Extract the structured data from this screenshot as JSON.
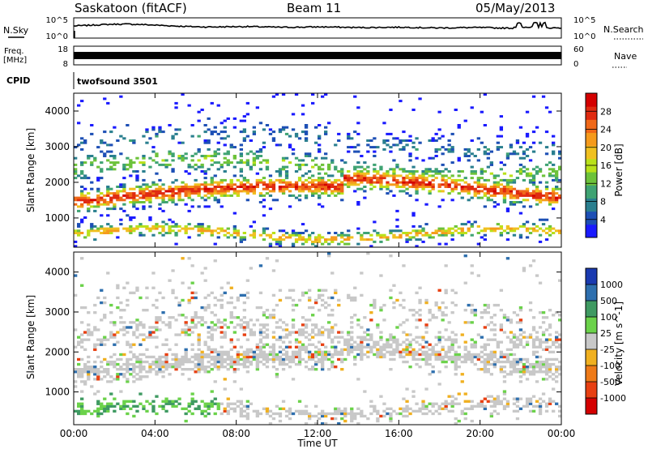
{
  "header": {
    "station": "Saskatoon (fitACF)",
    "beam": "Beam 11",
    "date": "05/May/2013"
  },
  "noise_panel": {
    "left_label": "N.Sky",
    "right_label": "N.Search",
    "left_ticks": [
      "10^5",
      "10^0"
    ],
    "right_ticks": [
      "10^5",
      "10^0"
    ]
  },
  "freq_panel": {
    "left_label": "Freq.",
    "left_unit": "[MHz]",
    "right_label": "Nave",
    "left_ticks": [
      "18",
      "8"
    ],
    "right_ticks": [
      "60",
      "0"
    ]
  },
  "cpid_panel": {
    "label": "CPID",
    "value": "twofsound 3501"
  },
  "chart_data": [
    {
      "type": "heatmap",
      "quantity": "Power",
      "ylabel": "Slant Range [km]",
      "colorbar_label": "Power [dB]",
      "ylim": [
        180,
        4500
      ],
      "yticks": [
        "1000",
        "2000",
        "3000",
        "4000"
      ],
      "colorbar_ticks": [
        "4",
        "8",
        "12",
        "16",
        "20",
        "24",
        "28"
      ],
      "colors": [
        "#1a1aff",
        "#1d4fb5",
        "#2a7f8f",
        "#3fa373",
        "#6dc23a",
        "#b9e11a",
        "#f0c020",
        "#f59a1c",
        "#f06818",
        "#e02a10",
        "#d40000"
      ]
    },
    {
      "type": "heatmap",
      "quantity": "Velocity",
      "ylabel": "Slant Range [km]",
      "colorbar_label": "Velocity [m s^-1]",
      "ylim": [
        180,
        4500
      ],
      "yticks": [
        "1000",
        "2000",
        "3000",
        "4000"
      ],
      "colorbar_ticks": [
        "1000",
        "500",
        "100",
        "25",
        "-25",
        "-100",
        "-500",
        "-1000"
      ],
      "colors": [
        "#1a3ab0",
        "#2e6fae",
        "#3f9a62",
        "#6bd24a",
        "#c8c8c8",
        "#f0b020",
        "#ee7a18",
        "#e84012",
        "#d40000"
      ]
    }
  ],
  "time_axis": {
    "label": "Time UT",
    "ticks": [
      "00:00",
      "04:00",
      "08:00",
      "12:00",
      "16:00",
      "20:00",
      "00:00"
    ]
  }
}
